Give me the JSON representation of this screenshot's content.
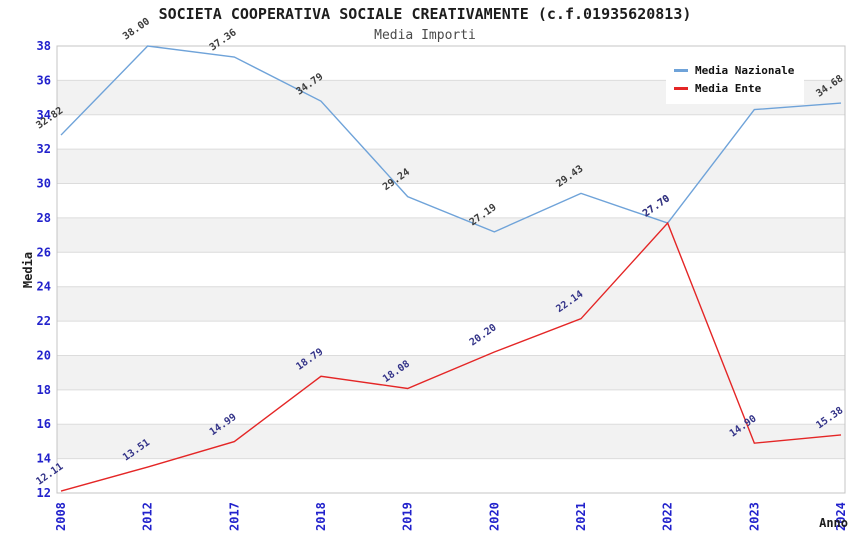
{
  "chart_data": {
    "type": "line",
    "title": "SOCIETA COOPERATIVA SOCIALE CREATIVAMENTE (c.f.01935620813)",
    "subtitle": "Media Importi",
    "xlabel": "Anno",
    "ylabel": "Media",
    "ylim": [
      12,
      38
    ],
    "yticks": [
      12,
      14,
      16,
      18,
      20,
      22,
      24,
      26,
      28,
      30,
      32,
      34,
      36,
      38
    ],
    "categories": [
      "2008",
      "2012",
      "2017",
      "2018",
      "2019",
      "2020",
      "2021",
      "2022",
      "2023",
      "2024"
    ],
    "series": [
      {
        "name": "Media Nazionale",
        "color": "#6fa3d9",
        "label_color": "#3c3c3c",
        "values": [
          32.82,
          38.0,
          37.36,
          34.79,
          29.24,
          27.19,
          29.43,
          27.7,
          34.3,
          34.68
        ]
      },
      {
        "name": "Media Ente",
        "color": "#e42626",
        "label_color": "#333388",
        "values": [
          12.11,
          13.51,
          14.99,
          18.79,
          18.08,
          20.2,
          22.14,
          27.7,
          14.9,
          15.38
        ]
      }
    ],
    "legend_position": "top-right",
    "grid": "horizontal-bands",
    "band_color": "#f2f2f2",
    "grid_line_color": "#dcdcdc",
    "border_color": "#c4c4c4",
    "tick_label_color": "#2222cc"
  }
}
